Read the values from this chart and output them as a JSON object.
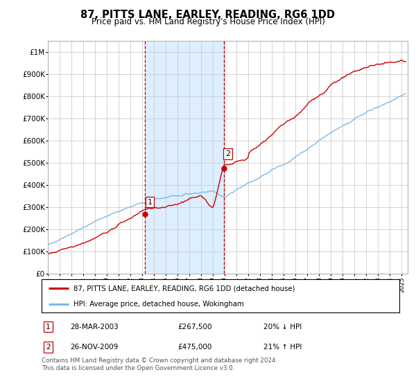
{
  "title": "87, PITTS LANE, EARLEY, READING, RG6 1DD",
  "subtitle": "Price paid vs. HM Land Registry's House Price Index (HPI)",
  "yticks": [
    0,
    100000,
    200000,
    300000,
    400000,
    500000,
    600000,
    700000,
    800000,
    900000,
    1000000
  ],
  "ytick_labels": [
    "£0",
    "£100K",
    "£200K",
    "£300K",
    "£400K",
    "£500K",
    "£600K",
    "£700K",
    "£800K",
    "£900K",
    "£1M"
  ],
  "ylim": [
    0,
    1050000
  ],
  "xlim_start": 1995.0,
  "xlim_end": 2025.5,
  "sale1_x": 2003.23,
  "sale1_y": 267500,
  "sale2_x": 2009.9,
  "sale2_y": 475000,
  "vline1_x": 2003.23,
  "vline2_x": 2009.9,
  "hpi_color": "#7ab8e8",
  "price_color": "#cc0000",
  "vline_color": "#cc0000",
  "highlight_color": "#ddeeff",
  "legend_line1": "87, PITTS LANE, EARLEY, READING, RG6 1DD (detached house)",
  "legend_line2": "HPI: Average price, detached house, Wokingham",
  "table_row1": [
    "1",
    "28-MAR-2003",
    "£267,500",
    "20% ↓ HPI"
  ],
  "table_row2": [
    "2",
    "26-NOV-2009",
    "£475,000",
    "21% ↑ HPI"
  ],
  "footer": "Contains HM Land Registry data © Crown copyright and database right 2024.\nThis data is licensed under the Open Government Licence v3.0.",
  "background_color": "#ffffff",
  "grid_color": "#cccccc"
}
